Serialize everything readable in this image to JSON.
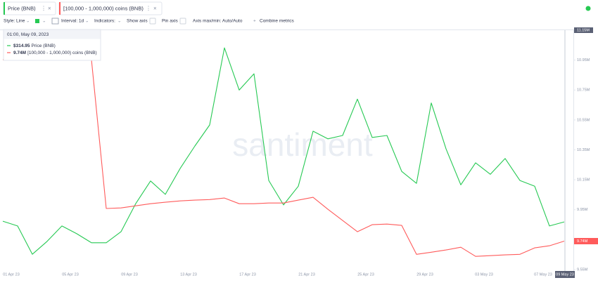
{
  "toolbar": [
    "Style: Line",
    "Interval: 1d",
    "Indicators:",
    "Show axis",
    "Pin axis",
    "Axis max/min: Auto/Auto",
    "Combine metrics"
  ],
  "watermark": "santiment",
  "tooltip": {
    "date": "01:00, May 09, 2023"
  },
  "chart_data": {
    "type": "line",
    "categories": [
      "01 Apr 23",
      null,
      null,
      null,
      "05 Apr 23",
      null,
      null,
      null,
      "09 Apr 23",
      null,
      null,
      null,
      "13 Apr 23",
      null,
      null,
      null,
      "17 Apr 23",
      null,
      null,
      null,
      "21 Apr 23",
      null,
      null,
      null,
      "25 Apr 23",
      null,
      null,
      null,
      "29 Apr 23",
      null,
      null,
      null,
      "03 May 23",
      null,
      null,
      null,
      "07 May 23",
      null,
      "09 May 23"
    ],
    "series": [
      {
        "name": "Price (BNB)",
        "color": "#26c953",
        "axis": "y2",
        "values": [
          315.1,
          314.1,
          308.2,
          310.9,
          314.1,
          312.5,
          310.6,
          310.6,
          312.9,
          318.8,
          323.5,
          320.7,
          326.1,
          330.8,
          335.2,
          351.3,
          342.5,
          345.9,
          323.6,
          318.5,
          322.4,
          333.9,
          332.3,
          333.0,
          340.6,
          332.6,
          333.0,
          325.5,
          323.0,
          339.8,
          330.2,
          322.7,
          327.3,
          324.9,
          328.2,
          323.6,
          322.4,
          314.1,
          314.95
        ],
        "value_labels": [
          null,
          null,
          null,
          null,
          null,
          null,
          null,
          null,
          null,
          null,
          null,
          null,
          null,
          null,
          null,
          null,
          null,
          null,
          null,
          null,
          null,
          null,
          null,
          null,
          null,
          null,
          null,
          null,
          null,
          null,
          null,
          null,
          null,
          null,
          null,
          null,
          null,
          null,
          "$314.95"
        ]
      },
      {
        "name": "[100,000 - 1,000,000) coins (BNB)",
        "color": "#ff5b5b",
        "values": [
          10953000,
          10953000,
          10953000,
          10953000,
          10953000,
          10953000,
          10953000,
          9958000,
          9962000,
          9976000,
          9990000,
          10000000,
          10009000,
          10014000,
          10018000,
          10028000,
          9990000,
          9990000,
          9995000,
          9995000,
          10014000,
          10033000,
          9953000,
          9878000,
          9803000,
          9850000,
          9854000,
          9845000,
          9652000,
          9666000,
          9681000,
          9699000,
          9638000,
          9643000,
          9648000,
          9652000,
          9695000,
          9709000,
          9740000
        ],
        "value_labels": [
          null,
          null,
          null,
          null,
          null,
          null,
          null,
          null,
          null,
          null,
          null,
          null,
          null,
          null,
          null,
          null,
          null,
          null,
          null,
          null,
          null,
          null,
          null,
          null,
          null,
          null,
          null,
          null,
          null,
          null,
          null,
          null,
          null,
          null,
          null,
          null,
          null,
          null,
          "9.74M"
        ]
      }
    ],
    "ylim": [
      9550000,
      11150000
    ],
    "yticks": [
      {
        "value": 9550000,
        "label": "9.55M"
      },
      {
        "value": 9750000,
        "label": "9.75M"
      },
      {
        "value": 9950000,
        "label": "9.95M"
      },
      {
        "value": 10150000,
        "label": "10.15M"
      },
      {
        "value": 10350000,
        "label": "10.35M"
      },
      {
        "value": 10550000,
        "label": "10.55M"
      },
      {
        "value": 10750000,
        "label": "10.75M"
      },
      {
        "value": 10950000,
        "label": "10.95M"
      },
      {
        "value": 11150000,
        "label": "11.15M"
      }
    ],
    "y2lim": [
      305,
      355
    ]
  }
}
